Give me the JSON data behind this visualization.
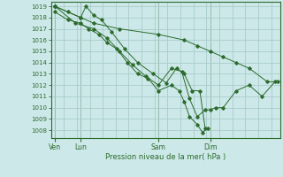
{
  "xlabel_bottom": "Pression niveau de la mer( hPa )",
  "background_color": "#cce8e8",
  "grid_color": "#aacccc",
  "line_color": "#2d6b2d",
  "tick_label_color": "#2d6b2d",
  "spine_color": "#2d6b2d",
  "ylim": [
    1007.3,
    1019.4
  ],
  "yticks": [
    1008,
    1009,
    1010,
    1011,
    1012,
    1013,
    1014,
    1015,
    1016,
    1017,
    1018,
    1019
  ],
  "xtick_labels": [
    "Ven",
    "Lun",
    "Sam",
    "Dim"
  ],
  "xtick_positions": [
    0.0,
    1.0,
    4.0,
    6.0
  ],
  "xlim": [
    -0.15,
    8.7
  ],
  "lines": [
    {
      "x": [
        0.0,
        1.0,
        1.5,
        2.5,
        4.0,
        5.0,
        5.5,
        6.0,
        6.5,
        7.0,
        7.5,
        8.2,
        8.6
      ],
      "y": [
        1019.0,
        1018.0,
        1017.5,
        1017.0,
        1016.5,
        1016.0,
        1015.5,
        1015.0,
        1014.5,
        1014.0,
        1013.5,
        1012.3,
        1012.3
      ]
    },
    {
      "x": [
        0.0,
        0.5,
        1.0,
        1.2,
        1.5,
        1.8,
        2.2,
        2.7,
        3.2,
        3.8,
        4.3,
        4.7,
        5.0,
        5.3,
        5.6,
        5.8
      ],
      "y": [
        1019.0,
        1018.5,
        1018.0,
        1019.0,
        1018.2,
        1017.8,
        1016.7,
        1015.2,
        1014.0,
        1013.0,
        1012.2,
        1013.5,
        1013.0,
        1011.5,
        1011.5,
        1008.2
      ]
    },
    {
      "x": [
        0.0,
        0.5,
        1.0,
        1.3,
        1.7,
        2.0,
        2.4,
        2.8,
        3.2,
        3.6,
        4.0,
        4.5,
        4.8,
        5.0,
        5.2,
        5.5,
        5.7,
        5.9
      ],
      "y": [
        1018.5,
        1017.8,
        1017.5,
        1017.0,
        1016.5,
        1015.8,
        1015.2,
        1014.0,
        1013.0,
        1012.6,
        1011.5,
        1012.0,
        1011.5,
        1010.5,
        1009.2,
        1008.5,
        1007.8,
        1008.2
      ]
    },
    {
      "x": [
        0.0,
        0.8,
        1.5,
        2.0,
        2.5,
        3.0,
        3.5,
        4.0,
        4.5,
        4.9,
        5.2,
        5.5,
        5.8,
        6.0,
        6.2,
        6.5,
        7.0,
        7.5,
        8.0,
        8.5
      ],
      "y": [
        1019.0,
        1017.5,
        1017.0,
        1016.2,
        1015.0,
        1013.8,
        1012.8,
        1012.0,
        1013.5,
        1013.2,
        1010.8,
        1009.2,
        1009.8,
        1009.8,
        1010.0,
        1010.0,
        1011.5,
        1012.0,
        1011.0,
        1012.3
      ]
    }
  ]
}
